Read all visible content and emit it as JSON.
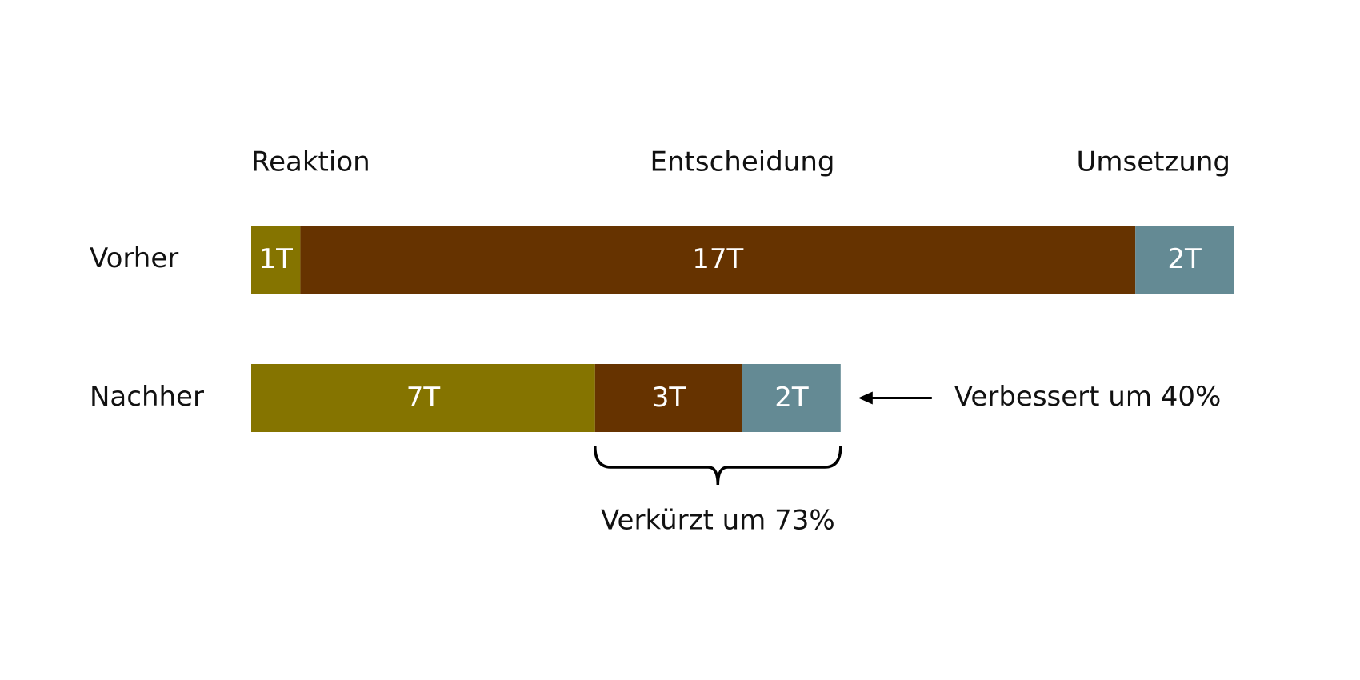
{
  "chart_data": {
    "type": "stacked-bar",
    "orientation": "horizontal",
    "categories": [
      "Vorher",
      "Nachher"
    ],
    "series": [
      {
        "name": "Reaktion",
        "color": "#857400",
        "values": [
          1,
          7
        ],
        "value_labels": [
          "1T",
          "7T"
        ]
      },
      {
        "name": "Entscheidung",
        "color": "#663300",
        "values": [
          17,
          3
        ],
        "value_labels": [
          "17T",
          "3T"
        ]
      },
      {
        "name": "Umsetzung",
        "color": "#648a94",
        "values": [
          2,
          2
        ],
        "value_labels": [
          "2T",
          "2T"
        ]
      }
    ],
    "annotations": [
      "Verbessert um 40%",
      "Verkürzt um 73%"
    ]
  }
}
